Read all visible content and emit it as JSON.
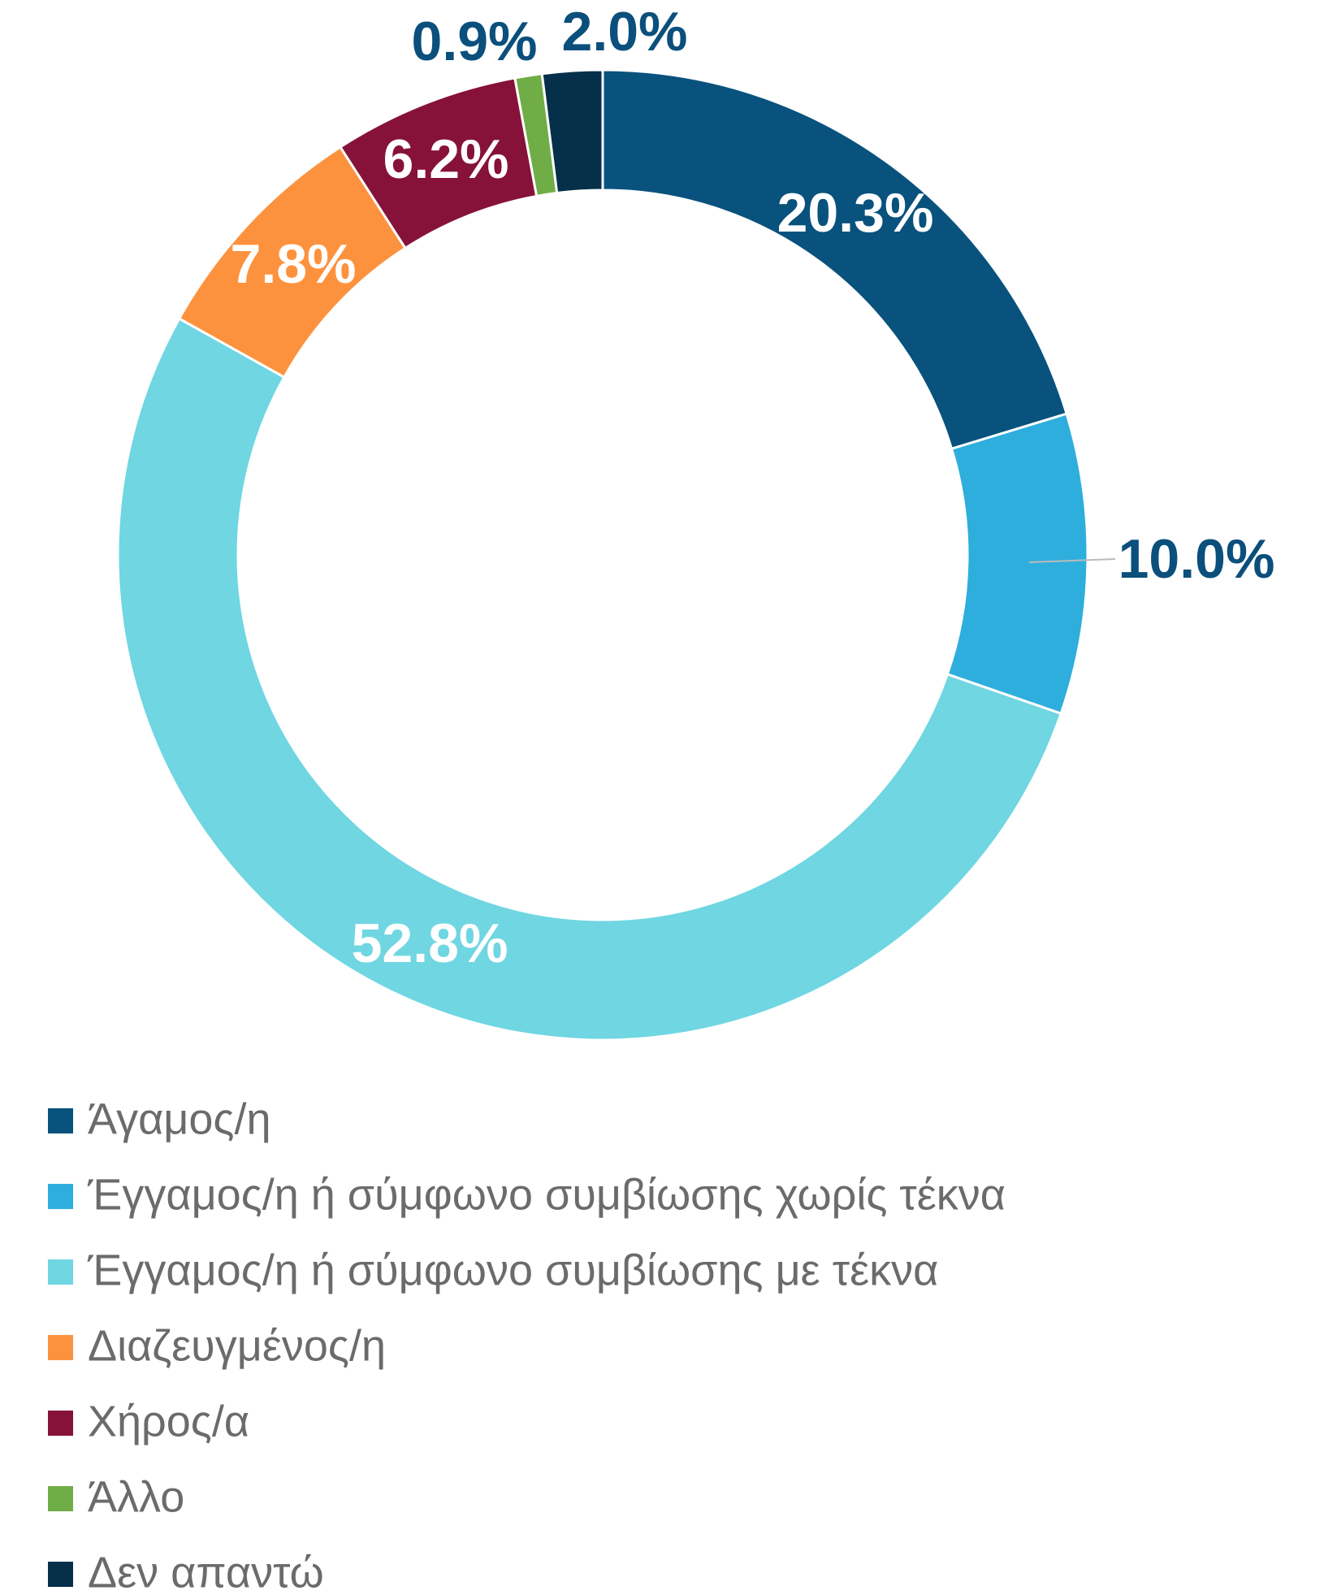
{
  "chart_data": {
    "type": "pie",
    "categories": [
      "Άγαμος/η",
      "Έγγαμος/η ή σύμφωνο συμβίωσης χωρίς τέκνα",
      "Έγγαμος/η ή σύμφωνο συμβίωσης με τέκνα",
      "Διαζευγμένος/η",
      "Χήρος/α",
      "Άλλο",
      "Δεν απαντώ"
    ],
    "values": [
      20.3,
      10.0,
      52.8,
      7.8,
      6.2,
      0.9,
      2.0
    ],
    "value_labels": [
      "20.3%",
      "10.0%",
      "52.8%",
      "7.8%",
      "6.2%",
      "0.9%",
      "2.0%"
    ],
    "colors": [
      "#08527d",
      "#2eaedd",
      "#6fd6e2",
      "#fd923e",
      "#861239",
      "#70ad47",
      "#062f4a"
    ],
    "legend": "bottom-left"
  }
}
